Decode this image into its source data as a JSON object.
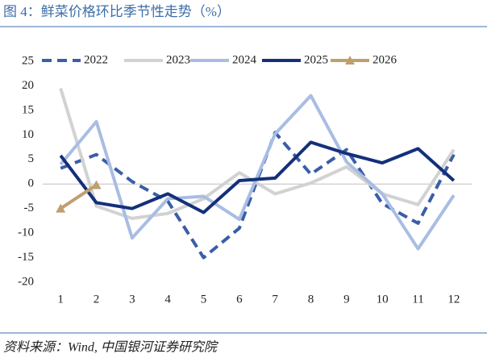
{
  "chart_data": {
    "type": "line",
    "title": "图 4：鲜菜价格环比季节性走势（%）",
    "source": "资料来源：Wind,  中国银河证券研究院",
    "x": [
      1,
      2,
      3,
      4,
      5,
      6,
      7,
      8,
      9,
      10,
      11,
      12
    ],
    "xlim": [
      0.5,
      12.5
    ],
    "xticks": [
      1,
      2,
      3,
      4,
      5,
      6,
      7,
      8,
      9,
      10,
      11,
      12
    ],
    "ylim": [
      -20,
      25
    ],
    "yticks": [
      -20,
      -15,
      -10,
      -5,
      0,
      5,
      10,
      15,
      20,
      25
    ],
    "grid": false,
    "legend": "top",
    "series": [
      {
        "name": "2022",
        "color": "#3a5ea8",
        "dash": true,
        "values": [
          3.2,
          6,
          0.5,
          -3.5,
          -15,
          -9,
          10.5,
          2,
          7,
          -4,
          -8,
          6
        ]
      },
      {
        "name": "2023",
        "color": "#d2d2d2",
        "values": [
          19.5,
          -4.5,
          -7,
          -6,
          -3,
          2.3,
          -2,
          0.2,
          3.5,
          -2,
          -4.2,
          7
        ]
      },
      {
        "name": "2024",
        "color": "#a9bde3",
        "values": [
          4,
          12.7,
          -11,
          -3,
          -2.5,
          -7.2,
          10.2,
          18,
          4.5,
          -2,
          -13.2,
          -2.3
        ]
      },
      {
        "name": "2025",
        "color": "#14307a",
        "values": [
          5.8,
          -3.8,
          -5,
          -2,
          -5.8,
          0.7,
          1.2,
          8.5,
          6.2,
          4.3,
          7.2,
          0.7
        ]
      },
      {
        "name": "2026",
        "color": "#bf9f6e",
        "marker": "triangle",
        "values": [
          -5,
          -0.2,
          null,
          null,
          null,
          null,
          null,
          null,
          null,
          null,
          null,
          null
        ]
      }
    ]
  }
}
